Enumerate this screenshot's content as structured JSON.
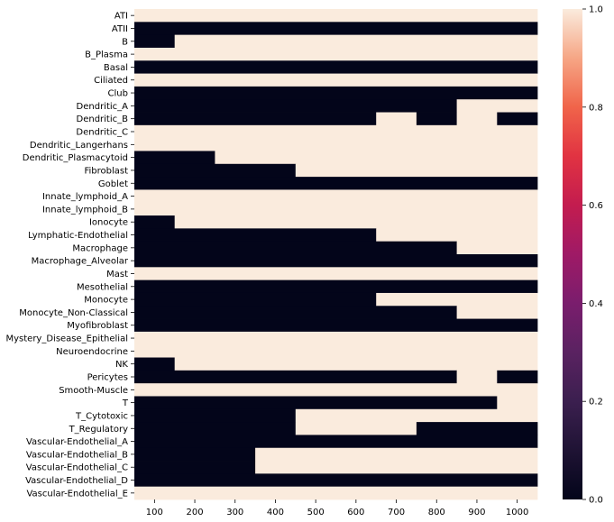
{
  "chart_data": {
    "type": "heatmap",
    "title": "",
    "xlabel": "",
    "ylabel": "",
    "x_range": [
      50,
      1050
    ],
    "x_ticks": [
      100,
      200,
      300,
      400,
      500,
      600,
      700,
      800,
      900,
      1000
    ],
    "bin_width": 100,
    "colormap": "rocket",
    "colorbar": {
      "min": 0.0,
      "max": 1.0,
      "ticks": [
        "0.0",
        "0.2",
        "0.4",
        "0.6",
        "0.8",
        "1.0"
      ]
    },
    "colors": {
      "high": "#faebdd",
      "low": "#03051a"
    },
    "rows": [
      {
        "label": "ATI",
        "segments": [
          [
            50,
            1050,
            1
          ]
        ]
      },
      {
        "label": "ATII",
        "segments": [
          [
            50,
            1050,
            0
          ]
        ]
      },
      {
        "label": "B",
        "segments": [
          [
            50,
            150,
            0
          ],
          [
            150,
            1050,
            1
          ]
        ]
      },
      {
        "label": "B_Plasma",
        "segments": [
          [
            50,
            1050,
            1
          ]
        ]
      },
      {
        "label": "Basal",
        "segments": [
          [
            50,
            1050,
            0
          ]
        ]
      },
      {
        "label": "Ciliated",
        "segments": [
          [
            50,
            1050,
            1
          ]
        ]
      },
      {
        "label": "Club",
        "segments": [
          [
            50,
            1050,
            0
          ]
        ]
      },
      {
        "label": "Dendritic_A",
        "segments": [
          [
            50,
            850,
            0
          ],
          [
            850,
            1050,
            1
          ]
        ]
      },
      {
        "label": "Dendritic_B",
        "segments": [
          [
            50,
            650,
            0
          ],
          [
            650,
            750,
            1
          ],
          [
            750,
            850,
            0
          ],
          [
            850,
            950,
            1
          ],
          [
            950,
            1050,
            0
          ]
        ]
      },
      {
        "label": "Dendritic_C",
        "segments": [
          [
            50,
            1050,
            1
          ]
        ]
      },
      {
        "label": "Dendritic_Langerhans",
        "segments": [
          [
            50,
            1050,
            1
          ]
        ]
      },
      {
        "label": "Dendritic_Plasmacytoid",
        "segments": [
          [
            50,
            250,
            0
          ],
          [
            250,
            1050,
            1
          ]
        ]
      },
      {
        "label": "Fibroblast",
        "segments": [
          [
            50,
            450,
            0
          ],
          [
            450,
            1050,
            1
          ]
        ]
      },
      {
        "label": "Goblet",
        "segments": [
          [
            50,
            1050,
            0
          ]
        ]
      },
      {
        "label": "Innate_lymphoid_A",
        "segments": [
          [
            50,
            1050,
            1
          ]
        ]
      },
      {
        "label": "Innate_lymphoid_B",
        "segments": [
          [
            50,
            1050,
            1
          ]
        ]
      },
      {
        "label": "Ionocyte",
        "segments": [
          [
            50,
            150,
            0
          ],
          [
            150,
            1050,
            1
          ]
        ]
      },
      {
        "label": "Lymphatic-Endothelial",
        "segments": [
          [
            50,
            650,
            0
          ],
          [
            650,
            1050,
            1
          ]
        ]
      },
      {
        "label": "Macrophage",
        "segments": [
          [
            50,
            850,
            0
          ],
          [
            850,
            1050,
            1
          ]
        ]
      },
      {
        "label": "Macrophage_Alveolar",
        "segments": [
          [
            50,
            1050,
            0
          ]
        ]
      },
      {
        "label": "Mast",
        "segments": [
          [
            50,
            1050,
            1
          ]
        ]
      },
      {
        "label": "Mesothelial",
        "segments": [
          [
            50,
            1050,
            0
          ]
        ]
      },
      {
        "label": "Monocyte",
        "segments": [
          [
            50,
            650,
            0
          ],
          [
            650,
            1050,
            1
          ]
        ]
      },
      {
        "label": "Monocyte_Non-Classical",
        "segments": [
          [
            50,
            850,
            0
          ],
          [
            850,
            1050,
            1
          ]
        ]
      },
      {
        "label": "Myofibroblast",
        "segments": [
          [
            50,
            1050,
            0
          ]
        ]
      },
      {
        "label": "Mystery_Disease_Epithelial",
        "segments": [
          [
            50,
            1050,
            1
          ]
        ]
      },
      {
        "label": "Neuroendocrine",
        "segments": [
          [
            50,
            1050,
            1
          ]
        ]
      },
      {
        "label": "NK",
        "segments": [
          [
            50,
            150,
            0
          ],
          [
            150,
            1050,
            1
          ]
        ]
      },
      {
        "label": "Pericytes",
        "segments": [
          [
            50,
            850,
            0
          ],
          [
            850,
            950,
            1
          ],
          [
            950,
            1050,
            0
          ]
        ]
      },
      {
        "label": "Smooth-Muscle",
        "segments": [
          [
            50,
            1050,
            1
          ]
        ]
      },
      {
        "label": "T",
        "segments": [
          [
            50,
            950,
            0
          ],
          [
            950,
            1050,
            1
          ]
        ]
      },
      {
        "label": "T_Cytotoxic",
        "segments": [
          [
            50,
            450,
            0
          ],
          [
            450,
            1050,
            1
          ]
        ]
      },
      {
        "label": "T_Regulatory",
        "segments": [
          [
            50,
            450,
            0
          ],
          [
            450,
            750,
            1
          ],
          [
            750,
            1050,
            0
          ]
        ]
      },
      {
        "label": "Vascular-Endothelial_A",
        "segments": [
          [
            50,
            1050,
            0
          ]
        ]
      },
      {
        "label": "Vascular-Endothelial_B",
        "segments": [
          [
            50,
            350,
            0
          ],
          [
            350,
            1050,
            1
          ]
        ]
      },
      {
        "label": "Vascular-Endothelial_C",
        "segments": [
          [
            50,
            350,
            0
          ],
          [
            350,
            1050,
            1
          ]
        ]
      },
      {
        "label": "Vascular-Endothelial_D",
        "segments": [
          [
            50,
            1050,
            0
          ]
        ]
      },
      {
        "label": "Vascular-Endothelial_E",
        "segments": [
          [
            50,
            1050,
            1
          ]
        ]
      }
    ]
  }
}
